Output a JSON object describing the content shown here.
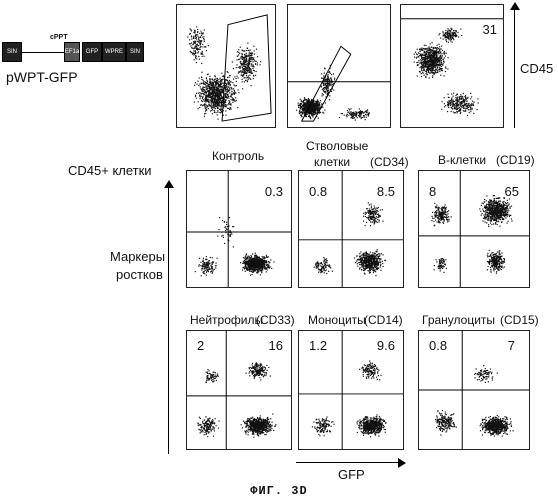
{
  "vector": {
    "name": "pWPT-GFP",
    "cppt": "cPPT",
    "boxes": [
      "SIN",
      "EF1a",
      "GFP",
      "WPRE",
      "SIN"
    ]
  },
  "labels": {
    "cd45_right": "CD45",
    "cd45_plus": "CD45+ клетки",
    "markers_line1": "Маркеры",
    "markers_line2": "ростков",
    "gfp_axis": "GFP",
    "figure_caption": "ФИГ. 3D"
  },
  "top_row": {
    "panel3_value": "31"
  },
  "panels": [
    {
      "title": "Контроль",
      "marker": "",
      "ul": "",
      "ur": "0.3"
    },
    {
      "title": "Стволовые клетки",
      "marker": "(CD34)",
      "ul": "0.8",
      "ur": "8.5"
    },
    {
      "title": "B-клетки",
      "marker": "(CD19)",
      "ul": "8",
      "ur": "65"
    },
    {
      "title": "Нейтрофилы",
      "marker": "(CD33)",
      "ul": "2",
      "ur": "16"
    },
    {
      "title": "Моноциты",
      "marker": "(CD14)",
      "ul": "1.2",
      "ur": "9.6"
    },
    {
      "title": "Гранулоциты",
      "marker": "(CD15)",
      "ul": "0.8",
      "ur": "7"
    }
  ],
  "stem_title": {
    "line1": "Стволовые",
    "line2": "клетки"
  }
}
